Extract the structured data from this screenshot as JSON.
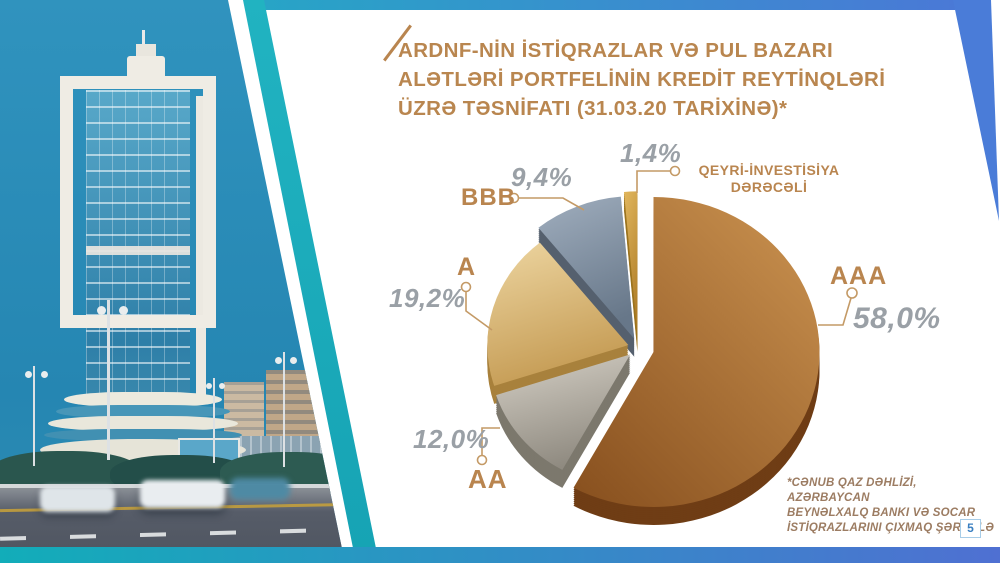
{
  "slide": {
    "title": "ARDNF-NİN İSTİQRAZLAR VƏ PUL BAZARI\nALƏTLƏRİ PORTFELİNİN KREDİT REYTİNQLƏRİ\nÜZRƏ TƏSNİFATI (31.03.20 TARİXİNƏ)*",
    "footnote": "*CƏNUB QAZ DƏHLİZİ, AZƏRBAYCAN\nBEYNƏLXALQ BANKI VƏ SOCAR\nİSTİQRAZLARINI ÇIXMAQ ŞƏRTİ İLƏ",
    "page_number": "5"
  },
  "colors": {
    "title_brown": "#b9864f",
    "value_gray": "#9aa0a6",
    "leader_brown": "#c49a66",
    "teal_accent": "#18acba",
    "blue_accent": "#4a79d6",
    "footnote_brown": "#9c7c62",
    "page_blue": "#3a7fc1"
  },
  "chart_data": {
    "type": "pie",
    "title": "ARDNF-nin istiqrazlar və pul bazarı alətləri portfelinin kredit reytinqləri üzrə təsnifatı (31.03.20 tarixinə)",
    "unit": "%",
    "style": "3d-exploded",
    "slices": [
      {
        "label": "AAA",
        "value": 58.0,
        "display": "58,0%",
        "color_from": "#c9914f",
        "color_to": "#8a5220",
        "color_side": "#6f3d15"
      },
      {
        "label": "AA",
        "value": 12.0,
        "display": "12,0%",
        "color_from": "#d3cec4",
        "color_to": "#8f8a80",
        "color_side": "#7c786d"
      },
      {
        "label": "A",
        "value": 19.2,
        "display": "19,2%",
        "color_from": "#ecd49f",
        "color_to": "#c49a52",
        "color_side": "#a8813c"
      },
      {
        "label": "BBB",
        "value": 9.4,
        "display": "9,4%",
        "color_from": "#9fadbd",
        "color_to": "#677789",
        "color_side": "#55606e"
      },
      {
        "label": "QEYRİ-İNVESTİSİYA\nDƏRƏCƏLİ",
        "value": 1.4,
        "display": "1,4%",
        "color_from": "#e0b55c",
        "color_to": "#b07e28",
        "color_side": "#9c741f"
      }
    ]
  }
}
